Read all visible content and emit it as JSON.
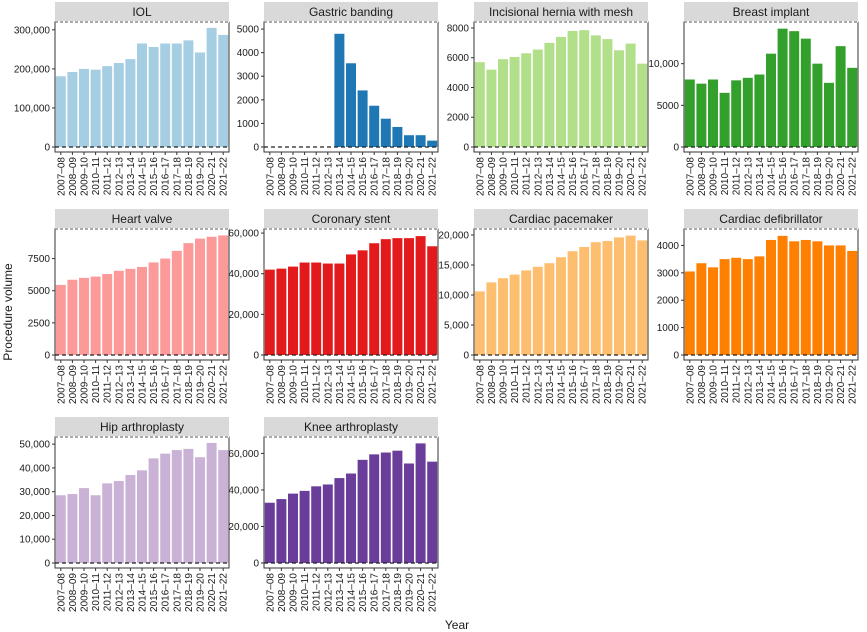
{
  "figure": {
    "xlabel": "Year",
    "ylabel": "Procedure volume"
  },
  "chart_data": [
    {
      "type": "bar",
      "title": "IOL",
      "color": "#a6cee3",
      "categories": [
        "2007–08",
        "2008–09",
        "2009–10",
        "2010–11",
        "2011–12",
        "2012–13",
        "2013–14",
        "2014–15",
        "2015–16",
        "2016–17",
        "2017–18",
        "2018–19",
        "2019–20",
        "2020–21",
        "2021–22"
      ],
      "values": [
        181000,
        192000,
        200000,
        198000,
        207000,
        215000,
        225000,
        265000,
        256000,
        265000,
        265000,
        273000,
        242000,
        305000,
        287000
      ],
      "ylim": [
        0,
        320000
      ],
      "yticks": [
        0,
        100000,
        200000,
        300000
      ],
      "ytick_labels": [
        "0",
        "100,000",
        "200,000",
        "300,000"
      ]
    },
    {
      "type": "bar",
      "title": "Gastric banding",
      "color": "#1f78b4",
      "categories": [
        "2007–08",
        "2008–09",
        "2009–10",
        "2010–11",
        "2011–12",
        "2012–13",
        "2013–14",
        "2014–15",
        "2015–16",
        "2016–17",
        "2017–18",
        "2018–19",
        "2019–20",
        "2020–21",
        "2021–22"
      ],
      "values": [
        0,
        0,
        0,
        0,
        0,
        0,
        4800,
        3550,
        2400,
        1750,
        1200,
        850,
        500,
        500,
        270
      ],
      "ylim": [
        0,
        5300
      ],
      "yticks": [
        0,
        1000,
        2000,
        3000,
        4000,
        5000
      ],
      "ytick_labels": [
        "0",
        "1000",
        "2000",
        "3000",
        "4000",
        "5000"
      ]
    },
    {
      "type": "bar",
      "title": "Incisional hernia with mesh",
      "color": "#b2df8a",
      "categories": [
        "2007–08",
        "2008–09",
        "2009–10",
        "2010–11",
        "2011–12",
        "2012–13",
        "2013–14",
        "2014–15",
        "2015–16",
        "2016–17",
        "2017–18",
        "2018–19",
        "2019–20",
        "2020–21",
        "2021–22"
      ],
      "values": [
        5700,
        5200,
        5900,
        6050,
        6300,
        6550,
        7000,
        7400,
        7800,
        7850,
        7500,
        7250,
        6500,
        6950,
        5600
      ],
      "ylim": [
        0,
        8400
      ],
      "yticks": [
        0,
        2000,
        4000,
        6000,
        8000
      ],
      "ytick_labels": [
        "0",
        "2000",
        "4000",
        "6000",
        "8000"
      ]
    },
    {
      "type": "bar",
      "title": "Breast implant",
      "color": "#33a02c",
      "categories": [
        "2007–08",
        "2008–09",
        "2009–10",
        "2010–11",
        "2011–12",
        "2012–13",
        "2013–14",
        "2014–15",
        "2015–16",
        "2016–17",
        "2017–18",
        "2018–19",
        "2019–20",
        "2020–21",
        "2021–22"
      ],
      "values": [
        8100,
        7600,
        8100,
        6500,
        8000,
        8300,
        8700,
        11200,
        14200,
        13900,
        13000,
        10000,
        7700,
        12100,
        9500
      ],
      "ylim": [
        0,
        15000
      ],
      "yticks": [
        0,
        5000,
        10000
      ],
      "ytick_labels": [
        "0",
        "5000",
        "10,000"
      ]
    },
    {
      "type": "bar",
      "title": "Heart valve",
      "color": "#fb9a99",
      "categories": [
        "2007–08",
        "2008–09",
        "2009–10",
        "2010–11",
        "2011–12",
        "2012–13",
        "2013–14",
        "2014–15",
        "2015–16",
        "2016–17",
        "2017–18",
        "2018–19",
        "2019–20",
        "2020–21",
        "2021–22"
      ],
      "values": [
        5450,
        5850,
        6000,
        6100,
        6300,
        6550,
        6700,
        6850,
        7200,
        7500,
        8100,
        8700,
        9050,
        9200,
        9300
      ],
      "ylim": [
        0,
        9800
      ],
      "yticks": [
        0,
        2500,
        5000,
        7500
      ],
      "ytick_labels": [
        "0",
        "2500",
        "5000",
        "7500"
      ]
    },
    {
      "type": "bar",
      "title": "Coronary stent",
      "color": "#e31a1c",
      "categories": [
        "2007–08",
        "2008–09",
        "2009–10",
        "2010–11",
        "2011–12",
        "2012–13",
        "2013–14",
        "2014–15",
        "2015–16",
        "2016–17",
        "2017–18",
        "2018–19",
        "2019–20",
        "2020–21",
        "2021–22"
      ],
      "values": [
        42000,
        42500,
        43500,
        45500,
        45500,
        45000,
        45000,
        49500,
        51500,
        55000,
        57000,
        57500,
        57500,
        58500,
        53500
      ],
      "ylim": [
        0,
        62000
      ],
      "yticks": [
        0,
        20000,
        40000,
        60000
      ],
      "ytick_labels": [
        "0",
        "20,000",
        "40,000",
        "60,000"
      ]
    },
    {
      "type": "bar",
      "title": "Cardiac pacemaker",
      "color": "#fdbf6f",
      "categories": [
        "2007–08",
        "2008–09",
        "2009–10",
        "2010–11",
        "2011–12",
        "2012–13",
        "2013–14",
        "2014–15",
        "2015–16",
        "2016–17",
        "2017–18",
        "2018–19",
        "2019–20",
        "2020–21",
        "2021–22"
      ],
      "values": [
        10600,
        12100,
        12800,
        13400,
        14100,
        14700,
        15300,
        16300,
        17300,
        18000,
        18800,
        19000,
        19600,
        19900,
        19100
      ],
      "ylim": [
        0,
        21000
      ],
      "yticks": [
        0,
        5000,
        10000,
        15000,
        20000
      ],
      "ytick_labels": [
        "0",
        "5,000",
        "10,000",
        "15,000",
        "20,000"
      ]
    },
    {
      "type": "bar",
      "title": "Cardiac defibrillator",
      "color": "#ff7f00",
      "categories": [
        "2007–08",
        "2008–09",
        "2009–10",
        "2010–11",
        "2011–12",
        "2012–13",
        "2013–14",
        "2014–15",
        "2015–16",
        "2016–17",
        "2017–18",
        "2018–19",
        "2019–20",
        "2020–21",
        "2021–22"
      ],
      "values": [
        3050,
        3350,
        3200,
        3500,
        3550,
        3500,
        3600,
        4200,
        4350,
        4150,
        4200,
        4150,
        4000,
        4000,
        3800
      ],
      "ylim": [
        0,
        4600
      ],
      "yticks": [
        0,
        1000,
        2000,
        3000,
        4000
      ],
      "ytick_labels": [
        "0",
        "1000",
        "2000",
        "3000",
        "4000"
      ]
    },
    {
      "type": "bar",
      "title": "Hip arthroplasty",
      "color": "#cab2d6",
      "categories": [
        "2007–08",
        "2008–09",
        "2009–10",
        "2010–11",
        "2011–12",
        "2012–13",
        "2013–14",
        "2014–15",
        "2015–16",
        "2016–17",
        "2017–18",
        "2018–19",
        "2019–20",
        "2020–21",
        "2021–22"
      ],
      "values": [
        28500,
        29000,
        31500,
        28500,
        33500,
        34500,
        37000,
        39000,
        44000,
        46000,
        47500,
        48000,
        44500,
        50500,
        47500
      ],
      "ylim": [
        0,
        53000
      ],
      "yticks": [
        0,
        10000,
        20000,
        30000,
        40000,
        50000
      ],
      "ytick_labels": [
        "0",
        "10,000",
        "20,000",
        "30,000",
        "40,000",
        "50,000"
      ]
    },
    {
      "type": "bar",
      "title": "Knee arthroplasty",
      "color": "#6a3d9a",
      "categories": [
        "2007–08",
        "2008–09",
        "2009–10",
        "2010–11",
        "2011–12",
        "2012–13",
        "2013–14",
        "2014–15",
        "2015–16",
        "2016–17",
        "2017–18",
        "2018–19",
        "2019–20",
        "2020–21",
        "2021–22"
      ],
      "values": [
        33000,
        35000,
        38000,
        39500,
        42000,
        43000,
        46500,
        49000,
        56500,
        59500,
        60500,
        61500,
        54500,
        65500,
        55500
      ],
      "ylim": [
        0,
        69000
      ],
      "yticks": [
        0,
        20000,
        40000,
        60000
      ],
      "ytick_labels": [
        "0",
        "20,000",
        "40,000",
        "60,000"
      ]
    }
  ]
}
